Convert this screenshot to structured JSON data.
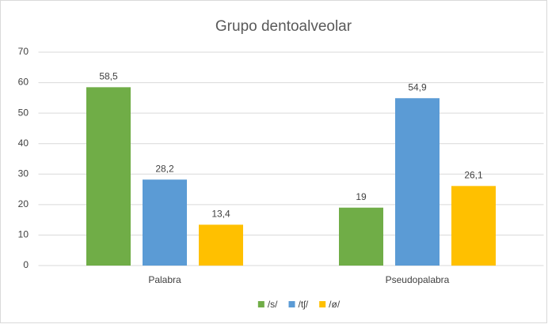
{
  "chart_data": {
    "type": "bar",
    "title": "Grupo dentoalveolar",
    "categories": [
      "Palabra",
      "Pseudopalabra"
    ],
    "series": [
      {
        "name": "/s/",
        "color": "#70ad47",
        "values": [
          58.5,
          19
        ],
        "value_labels": [
          "58,5",
          "19"
        ]
      },
      {
        "name": "/tʃ/",
        "color": "#5b9bd5",
        "values": [
          28.2,
          54.9
        ],
        "value_labels": [
          "28,2",
          "54,9"
        ]
      },
      {
        "name": "/ø/",
        "color": "#ffc000",
        "values": [
          13.4,
          26.1
        ],
        "value_labels": [
          "13,4",
          "26,1"
        ]
      }
    ],
    "ylim": [
      0,
      70
    ],
    "yticks": [
      0,
      10,
      20,
      30,
      40,
      50,
      60,
      70
    ],
    "grid": true,
    "legend": "bottom"
  }
}
